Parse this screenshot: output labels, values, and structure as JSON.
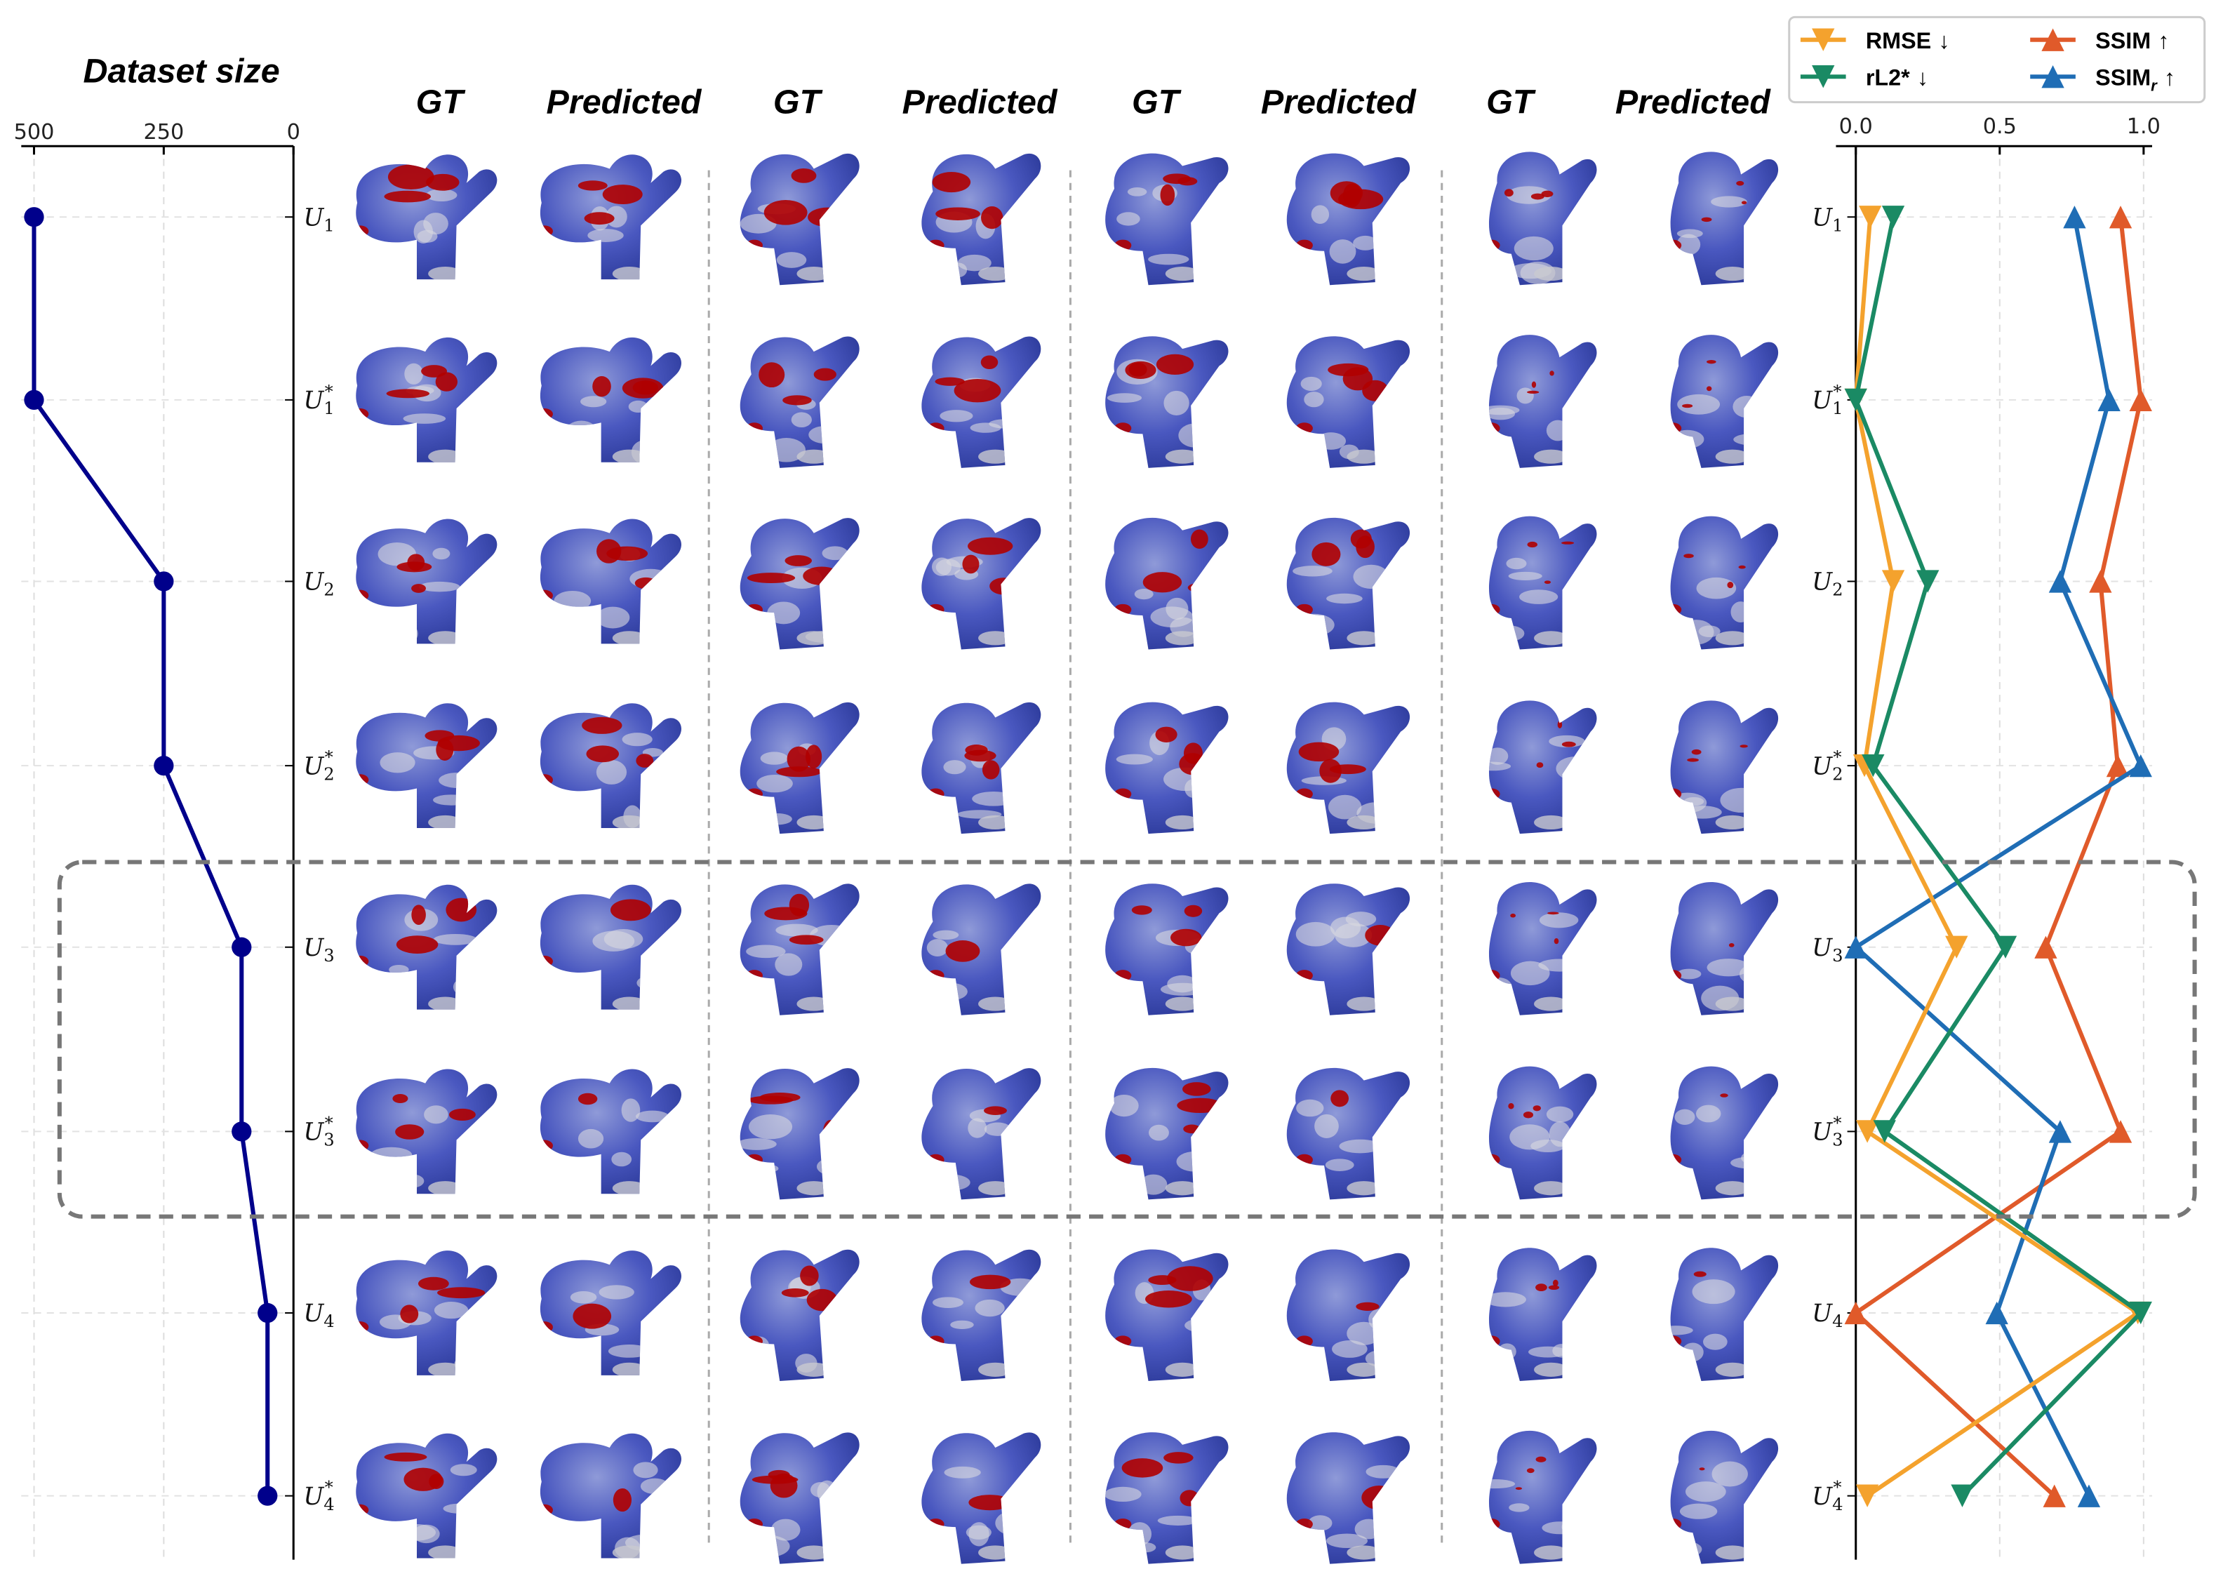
{
  "column_headers": [
    "GT",
    "Predicted",
    "GT",
    "Predicted",
    "GT",
    "Predicted",
    "GT",
    "Predicted"
  ],
  "colors": {
    "blue_surface": "#4a58c0",
    "red_surface": "#b00000",
    "line_dataset": "#00008b",
    "RMSE": "#f4a22d",
    "rL2": "#1a8a64",
    "SSIM": "#e05a2a",
    "SSIMr": "#1f6db5",
    "box": "#777777"
  },
  "chart_data": [
    {
      "type": "line",
      "title": "Dataset size",
      "orientation": "horizontal",
      "x_ticks": [
        "500",
        "250",
        "0"
      ],
      "xlim": [
        500,
        0
      ],
      "categories": [
        {
          "main": "U",
          "sub": "1",
          "sup": ""
        },
        {
          "main": "U",
          "sub": "1",
          "sup": "*"
        },
        {
          "main": "U",
          "sub": "2",
          "sup": ""
        },
        {
          "main": "U",
          "sub": "2",
          "sup": "*"
        },
        {
          "main": "U",
          "sub": "3",
          "sup": ""
        },
        {
          "main": "U",
          "sub": "3",
          "sup": "*"
        },
        {
          "main": "U",
          "sub": "4",
          "sup": ""
        },
        {
          "main": "U",
          "sub": "4",
          "sup": "*"
        }
      ],
      "values": [
        500,
        500,
        250,
        250,
        100,
        100,
        50,
        50
      ],
      "grid": true,
      "marker": "circle"
    },
    {
      "type": "line",
      "orientation": "horizontal",
      "x_ticks": [
        "0.0",
        "0.5",
        "1.0"
      ],
      "xlim": [
        0,
        1
      ],
      "grid": true,
      "legend_position": "top",
      "series": [
        {
          "name": "RMSE",
          "sub": "",
          "arrow": "↓",
          "marker": "triangle-down",
          "color_key": "RMSE",
          "values": [
            0.05,
            0.0,
            0.13,
            0.03,
            0.35,
            0.04,
            0.98,
            0.04
          ]
        },
        {
          "name": "rL2*",
          "sub": "",
          "arrow": "↓",
          "marker": "triangle-down",
          "color_key": "rL2",
          "values": [
            0.13,
            0.0,
            0.25,
            0.06,
            0.52,
            0.1,
            0.99,
            0.37
          ]
        },
        {
          "name": "SSIM",
          "sub": "",
          "arrow": "↑",
          "marker": "triangle-up",
          "color_key": "SSIM",
          "values": [
            0.92,
            0.99,
            0.85,
            0.91,
            0.66,
            0.92,
            0.0,
            0.69
          ]
        },
        {
          "name": "SSIM",
          "sub": "r",
          "arrow": "↑",
          "marker": "triangle-up",
          "color_key": "SSIMr",
          "values": [
            0.76,
            0.88,
            0.71,
            0.99,
            0.0,
            0.71,
            0.49,
            0.81
          ]
        }
      ]
    }
  ]
}
